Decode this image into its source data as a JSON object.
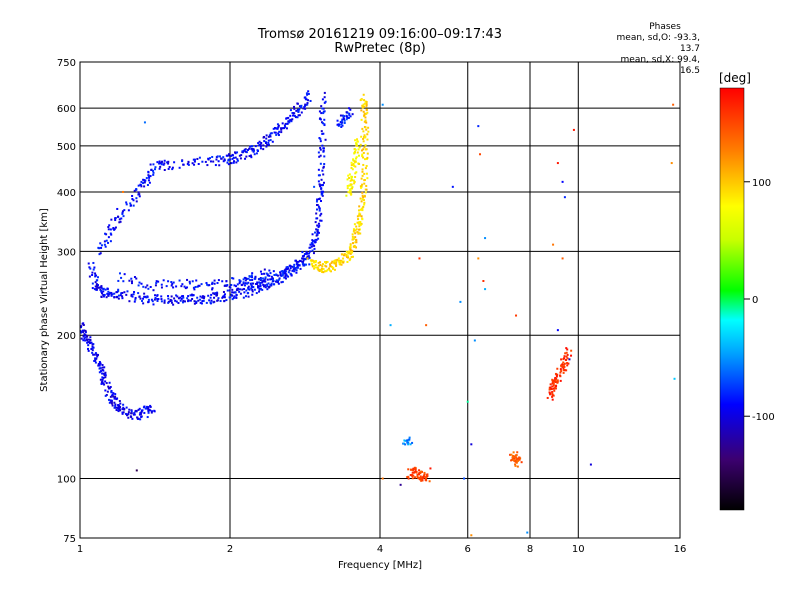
{
  "header": {
    "title": "Tromsø 20161219 09:16:00–09:17:43",
    "subtitle": "RwPretec (8p)",
    "phases_title": "Phases",
    "phases_o": "mean, sd,O:  -93.3, 13.7",
    "phases_x": "mean, sd,X:  99.4, 16.5"
  },
  "colorbar": {
    "label": "[deg]",
    "min": -180,
    "max": 180,
    "ticks": [
      {
        "value": 100,
        "label": "100"
      },
      {
        "value": 0,
        "label": "0"
      },
      {
        "value": -100,
        "label": "-100"
      }
    ]
  },
  "chart_data": {
    "type": "scatter",
    "title": "Tromsø 20161219 09:16:00–09:17:43",
    "subtitle": "RwPretec (8p)",
    "xlabel": "Frequency [MHz]",
    "ylabel": "Stationary phase Virtual Height [km]",
    "x_scale": "log",
    "y_scale": "log",
    "xlim": [
      1,
      16
    ],
    "ylim": [
      75,
      750
    ],
    "x_ticks": [
      {
        "value": 1,
        "label": "1"
      },
      {
        "value": 2,
        "label": "2"
      },
      {
        "value": 4,
        "label": "4"
      },
      {
        "value": 6,
        "label": "6"
      },
      {
        "value": 8,
        "label": "8"
      },
      {
        "value": 10,
        "label": "10"
      },
      {
        "value": 16,
        "label": "16"
      }
    ],
    "y_ticks": [
      {
        "value": 75,
        "label": "75"
      },
      {
        "value": 100,
        "label": "100"
      },
      {
        "value": 200,
        "label": "200"
      },
      {
        "value": 300,
        "label": "300"
      },
      {
        "value": 400,
        "label": "400"
      },
      {
        "value": 500,
        "label": "500"
      },
      {
        "value": 600,
        "label": "600"
      },
      {
        "value": 750,
        "label": "750"
      }
    ],
    "grid_x": [
      1,
      2,
      4,
      6,
      8,
      10,
      16
    ],
    "grid_y": [
      100,
      200,
      300,
      400,
      500,
      600
    ],
    "color_by": "phase [deg]",
    "traces": [
      {
        "phase": -105,
        "points": [
          [
            1.0,
            210
          ],
          [
            1.02,
            200
          ],
          [
            1.05,
            190
          ],
          [
            1.08,
            180
          ],
          [
            1.1,
            170
          ],
          [
            1.12,
            160
          ],
          [
            1.15,
            150
          ],
          [
            1.18,
            145
          ],
          [
            1.2,
            140
          ],
          [
            1.25,
            137
          ],
          [
            1.3,
            136
          ],
          [
            1.35,
            138
          ],
          [
            1.4,
            142
          ]
        ]
      },
      {
        "phase": -100,
        "points": [
          [
            1.05,
            280
          ],
          [
            1.08,
            255
          ],
          [
            1.1,
            248
          ],
          [
            1.15,
            245
          ],
          [
            1.2,
            243
          ],
          [
            1.3,
            240
          ],
          [
            1.4,
            238
          ],
          [
            1.5,
            237
          ],
          [
            1.6,
            237
          ],
          [
            1.7,
            238
          ],
          [
            1.8,
            239
          ],
          [
            1.9,
            241
          ],
          [
            2.0,
            243
          ],
          [
            2.1,
            245
          ],
          [
            2.2,
            248
          ],
          [
            2.3,
            252
          ],
          [
            2.4,
            257
          ],
          [
            2.5,
            263
          ],
          [
            2.6,
            270
          ],
          [
            2.7,
            278
          ],
          [
            2.8,
            288
          ],
          [
            2.9,
            300
          ],
          [
            2.95,
            315
          ],
          [
            3.0,
            340
          ],
          [
            3.03,
            380
          ],
          [
            3.05,
            420
          ],
          [
            3.06,
            480
          ],
          [
            3.07,
            560
          ],
          [
            3.08,
            640
          ]
        ]
      },
      {
        "phase": -100,
        "points": [
          [
            1.1,
            300
          ],
          [
            1.15,
            330
          ],
          [
            1.2,
            360
          ],
          [
            1.3,
            390
          ],
          [
            1.35,
            420
          ],
          [
            1.4,
            450
          ],
          [
            1.5,
            455
          ],
          [
            1.7,
            460
          ],
          [
            1.9,
            465
          ],
          [
            2.0,
            470
          ],
          [
            2.1,
            475
          ],
          [
            2.2,
            485
          ],
          [
            2.3,
            500
          ],
          [
            2.4,
            520
          ],
          [
            2.5,
            540
          ],
          [
            2.6,
            560
          ],
          [
            2.7,
            585
          ],
          [
            2.8,
            610
          ],
          [
            2.9,
            640
          ]
        ]
      },
      {
        "phase": -100,
        "points": [
          [
            1.2,
            265
          ],
          [
            1.4,
            255
          ],
          [
            1.6,
            255
          ],
          [
            1.8,
            255
          ],
          [
            2.0,
            258
          ],
          [
            2.2,
            262
          ],
          [
            2.4,
            270
          ]
        ]
      },
      {
        "phase": -95,
        "points": [
          [
            2.1,
            258
          ],
          [
            2.3,
            262
          ],
          [
            2.5,
            268
          ],
          [
            2.7,
            275
          ],
          [
            2.9,
            290
          ]
        ]
      },
      {
        "phase": -95,
        "points": [
          [
            3.3,
            560
          ],
          [
            3.4,
            575
          ],
          [
            3.5,
            590
          ]
        ]
      },
      {
        "phase": 95,
        "points": [
          [
            2.9,
            285
          ],
          [
            3.0,
            280
          ],
          [
            3.1,
            278
          ],
          [
            3.2,
            280
          ],
          [
            3.3,
            285
          ],
          [
            3.4,
            292
          ],
          [
            3.5,
            300
          ],
          [
            3.55,
            315
          ],
          [
            3.6,
            330
          ],
          [
            3.65,
            350
          ],
          [
            3.7,
            380
          ],
          [
            3.72,
            420
          ],
          [
            3.73,
            480
          ],
          [
            3.74,
            540
          ],
          [
            3.72,
            600
          ],
          [
            3.7,
            630
          ]
        ]
      },
      {
        "phase": 80,
        "points": [
          [
            3.45,
            400
          ],
          [
            3.5,
            420
          ],
          [
            3.55,
            450
          ],
          [
            3.6,
            480
          ],
          [
            3.62,
            520
          ]
        ]
      },
      {
        "phase": 150,
        "points": [
          [
            4.6,
            102
          ],
          [
            4.7,
            103
          ],
          [
            4.8,
            102
          ],
          [
            4.9,
            101
          ],
          [
            5.0,
            100
          ]
        ]
      },
      {
        "phase": 140,
        "points": [
          [
            7.4,
            112
          ],
          [
            7.5,
            110
          ],
          [
            7.6,
            108
          ]
        ]
      },
      {
        "phase": -60,
        "points": [
          [
            4.5,
            120
          ],
          [
            4.6,
            118
          ]
        ]
      },
      {
        "phase": 160,
        "points": [
          [
            8.8,
            150
          ],
          [
            8.9,
            155
          ],
          [
            9.0,
            160
          ],
          [
            9.2,
            168
          ],
          [
            9.4,
            175
          ],
          [
            9.6,
            185
          ]
        ]
      }
    ],
    "scatter": [
      [
        1.35,
        560,
        -70
      ],
      [
        1.3,
        104,
        -150
      ],
      [
        1.22,
        400,
        130
      ],
      [
        2.95,
        410,
        -80
      ],
      [
        4.05,
        610,
        -60
      ],
      [
        4.8,
        290,
        160
      ],
      [
        4.95,
        210,
        140
      ],
      [
        5.6,
        410,
        -95
      ],
      [
        6.3,
        550,
        -90
      ],
      [
        6.35,
        480,
        150
      ],
      [
        6.5,
        320,
        -60
      ],
      [
        6.3,
        290,
        120
      ],
      [
        6.45,
        260,
        160
      ],
      [
        6.2,
        195,
        -60
      ],
      [
        6.0,
        145,
        -10
      ],
      [
        6.1,
        118,
        -110
      ],
      [
        5.9,
        100,
        -80
      ],
      [
        6.1,
        76,
        120
      ],
      [
        7.5,
        220,
        155
      ],
      [
        7.9,
        77,
        -60
      ],
      [
        9.1,
        460,
        170
      ],
      [
        9.3,
        420,
        -100
      ],
      [
        9.4,
        390,
        -90
      ],
      [
        9.3,
        290,
        140
      ],
      [
        9.1,
        205,
        -100
      ],
      [
        9.6,
        178,
        -120
      ],
      [
        9.8,
        540,
        170
      ],
      [
        10.6,
        107,
        -110
      ],
      [
        15.5,
        610,
        140
      ],
      [
        15.4,
        460,
        120
      ],
      [
        15.6,
        162,
        -40
      ],
      [
        4.2,
        210,
        -50
      ],
      [
        5.8,
        235,
        -60
      ],
      [
        6.5,
        250,
        -50
      ],
      [
        4.05,
        100,
        130
      ],
      [
        5.05,
        105,
        170
      ],
      [
        4.4,
        97,
        -130
      ],
      [
        8.9,
        310,
        130
      ]
    ]
  }
}
